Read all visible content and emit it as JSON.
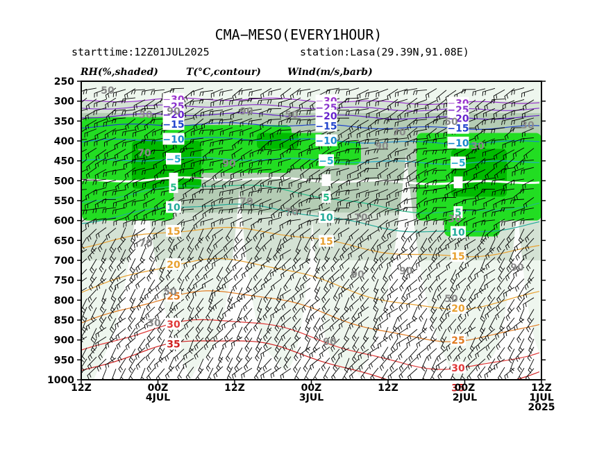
{
  "title": "CMA−MESO(EVERY1HOUR)",
  "starttime": "starttime:12Z01JUL2025",
  "station": "station:Lasa(29.39N,91.08E)",
  "legend": {
    "rh": "RH(%,shaded)",
    "temp": "T(°C,contour)",
    "wind": "Wind(m/s,barb)"
  },
  "chart_data": {
    "type": "time-height cross section",
    "y_axis": {
      "label": "",
      "ticks": [
        250,
        300,
        350,
        400,
        450,
        500,
        550,
        600,
        650,
        700,
        750,
        800,
        850,
        900,
        950,
        1000
      ],
      "ylim": [
        1000,
        250
      ],
      "inverted": true
    },
    "x_axis": {
      "direction": "time increases right-to-left",
      "ticks": [
        {
          "hours": 72,
          "label": [
            "12Z"
          ]
        },
        {
          "hours": 60,
          "label": [
            "00Z",
            "4JUL"
          ]
        },
        {
          "hours": 48,
          "label": [
            "12Z"
          ]
        },
        {
          "hours": 36,
          "label": [
            "00Z",
            "3JUL"
          ]
        },
        {
          "hours": 24,
          "label": [
            "12Z"
          ]
        },
        {
          "hours": 12,
          "label": [
            "00Z",
            "2JUL"
          ]
        },
        {
          "hours": 0,
          "label": [
            "12Z",
            "1JUL",
            "2025"
          ]
        }
      ]
    },
    "temperature_contours_C": [
      {
        "level": -30,
        "color": "#9a33cc",
        "pressure": 305
      },
      {
        "level": -25,
        "color": "#8833cc",
        "pressure": 322
      },
      {
        "level": -20,
        "color": "#6622cc",
        "pressure": 343
      },
      {
        "level": -15,
        "color": "#2244cc",
        "pressure": 368
      },
      {
        "level": -10,
        "color": "#1a88cc",
        "pressure": 405
      },
      {
        "level": -5,
        "color": "#22aacc",
        "pressure": 455
      },
      {
        "level": 0,
        "color": "#ffffff",
        "pressure": 505
      },
      {
        "level": 5,
        "color": "#22bb88",
        "pressure": 580
      },
      {
        "level": 10,
        "color": "#22aa99",
        "pressure": 630
      },
      {
        "level": 15,
        "color": "#e8a030",
        "pressure": 690
      },
      {
        "level": 20,
        "color": "#e8a030",
        "pressure": 760
      },
      {
        "level": 25,
        "color": "#e07a20",
        "pressure": 840
      },
      {
        "level": 30,
        "color": "#e03838",
        "pressure": 910
      },
      {
        "level": 35,
        "color": "#d02020",
        "pressure": 960
      }
    ],
    "rh_shading_levels_pct": [
      30,
      50,
      70,
      90
    ],
    "rh_colors": {
      "30": "#eef6ee",
      "50": "#d4e2d4",
      "70": "#b4ccb4",
      "90": "#22dd22",
      "95": "#00bb00"
    },
    "rh_labels_shown": [
      50,
      30,
      70,
      90,
      90,
      70,
      50,
      90,
      70,
      90,
      70,
      90,
      50,
      30,
      90,
      70,
      90,
      50,
      30,
      30,
      50,
      30,
      90,
      70
    ],
    "grid": false
  }
}
